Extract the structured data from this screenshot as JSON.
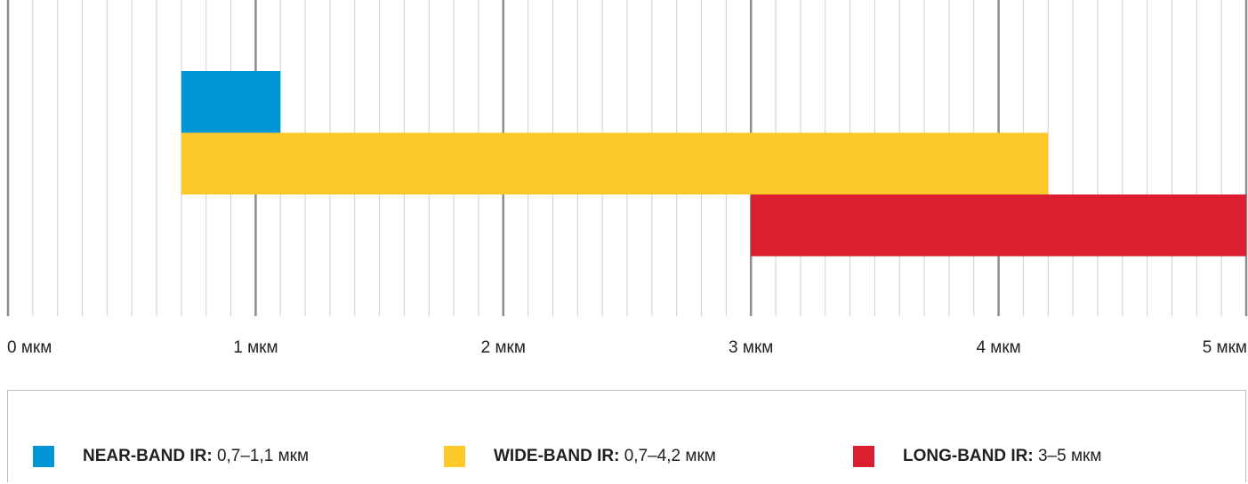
{
  "chart_data": {
    "type": "bar",
    "orientation": "horizontal",
    "unit": "мкм",
    "xlim": [
      0,
      5
    ],
    "tick_labels": [
      "0 мкм",
      "1 мкм",
      "2 мкм",
      "3 мкм",
      "4 мкм",
      "5 мкм"
    ],
    "grid": true,
    "legend_position": "bottom",
    "series": [
      {
        "name": "NEAR-BAND IR:",
        "range_text": "0,7–1,1 мкм",
        "start": 0.7,
        "end": 1.1,
        "color": "#0096d6"
      },
      {
        "name": "WIDE-BAND IR:",
        "range_text": "0,7–4,2 мкм",
        "start": 0.7,
        "end": 4.2,
        "color": "#fdc82a"
      },
      {
        "name": "LONG-BAND IR:",
        "range_text": "3–5 мкм",
        "start": 3.0,
        "end": 5.0,
        "color": "#dc1f30"
      }
    ]
  }
}
